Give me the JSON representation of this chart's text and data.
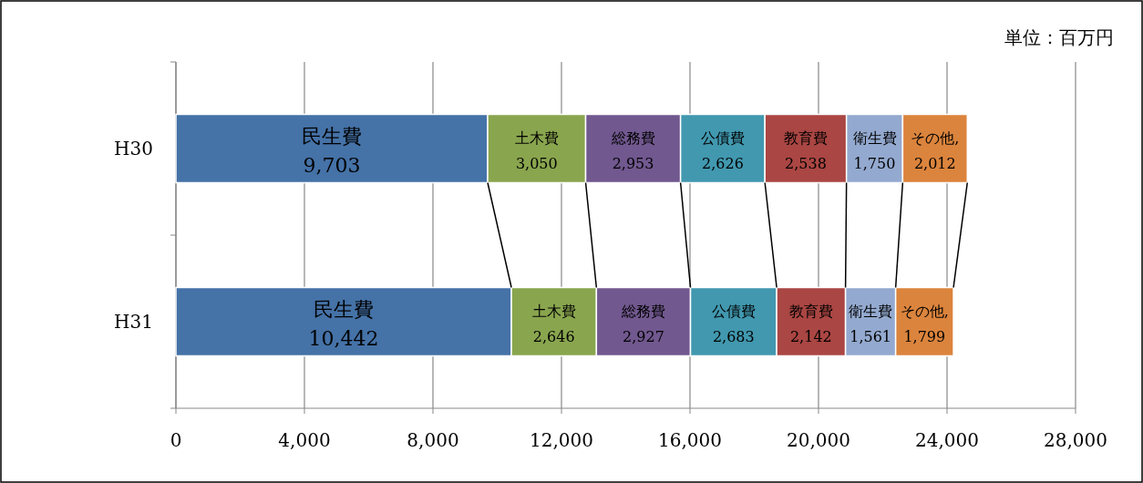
{
  "chart_data": {
    "type": "bar",
    "orientation": "horizontal",
    "stacked": true,
    "categories": [
      "H30",
      "H31"
    ],
    "series": [
      {
        "name": "民生費",
        "color": "#4572a7",
        "values": [
          9703,
          10442
        ],
        "value_labels": [
          "9,703",
          "10,442"
        ]
      },
      {
        "name": "土木費",
        "color": "#89a54e",
        "values": [
          3050,
          2646
        ],
        "value_labels": [
          "3,050",
          "2,646"
        ]
      },
      {
        "name": "総務費",
        "color": "#71588f",
        "values": [
          2953,
          2927
        ],
        "value_labels": [
          "2,953",
          "2,927"
        ]
      },
      {
        "name": "公債費",
        "color": "#4198af",
        "values": [
          2626,
          2683
        ],
        "value_labels": [
          "2,626",
          "2,683"
        ]
      },
      {
        "name": "教育費",
        "color": "#aa4643",
        "values": [
          2538,
          2142
        ],
        "value_labels": [
          "2,538",
          "2,142"
        ]
      },
      {
        "name": "衛生費",
        "color": "#93a9cf",
        "values": [
          1750,
          1561
        ],
        "value_labels": [
          "1,750",
          "1,561"
        ]
      },
      {
        "name": "その他,",
        "color": "#db843d",
        "values": [
          2012,
          1799
        ],
        "value_labels": [
          "2,012",
          "1,799"
        ]
      }
    ],
    "xlim": [
      0,
      28000
    ],
    "xticks": [
      0,
      {
        "value": 4000,
        "label": "4,000"
      },
      {
        "value": 8000,
        "label": "8,000"
      },
      {
        "value": 12000,
        "label": "12,000"
      },
      {
        "value": 16000,
        "label": "16,000"
      },
      {
        "value": 20000,
        "label": "20,000"
      },
      {
        "value": 24000,
        "label": "24,000"
      },
      {
        "value": 28000,
        "label": "28,000"
      }
    ],
    "grid": "x",
    "annotations": [
      "単位：百万円"
    ]
  }
}
